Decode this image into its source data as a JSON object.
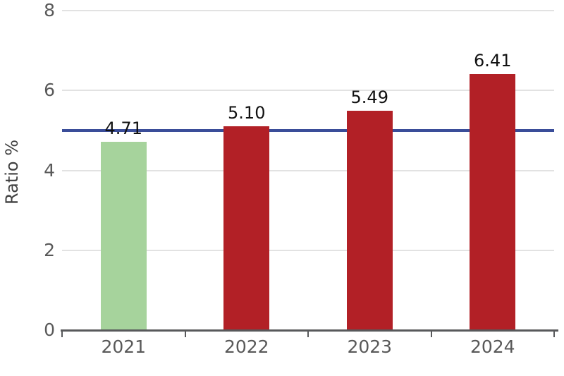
{
  "chart_data": {
    "type": "bar",
    "title": "",
    "xlabel": "",
    "ylabel": "Ratio %",
    "categories": [
      "2021",
      "2022",
      "2023",
      "2024"
    ],
    "values": [
      4.71,
      5.1,
      5.49,
      6.41
    ],
    "value_labels": [
      "4.71",
      "5.10",
      "5.49",
      "6.41"
    ],
    "bar_colors": [
      "#a6d39c",
      "#b22026",
      "#b22026",
      "#b22026"
    ],
    "ylim": [
      0,
      8
    ],
    "yticks": [
      "0",
      "2",
      "4",
      "6",
      "8"
    ],
    "grid": true,
    "legend": "none",
    "reference_line": {
      "value": 5.0,
      "color": "#3a4d99"
    }
  },
  "colors": {
    "background": "#ffffff",
    "gridline": "#e2e2e2",
    "axis_line": "#58595b",
    "tick_label": "#595959",
    "value_label": "#111111",
    "axis_title": "#404040",
    "bar_green": "#a6d39c",
    "bar_red": "#b22026",
    "reference_line_blue": "#3a4d99"
  }
}
